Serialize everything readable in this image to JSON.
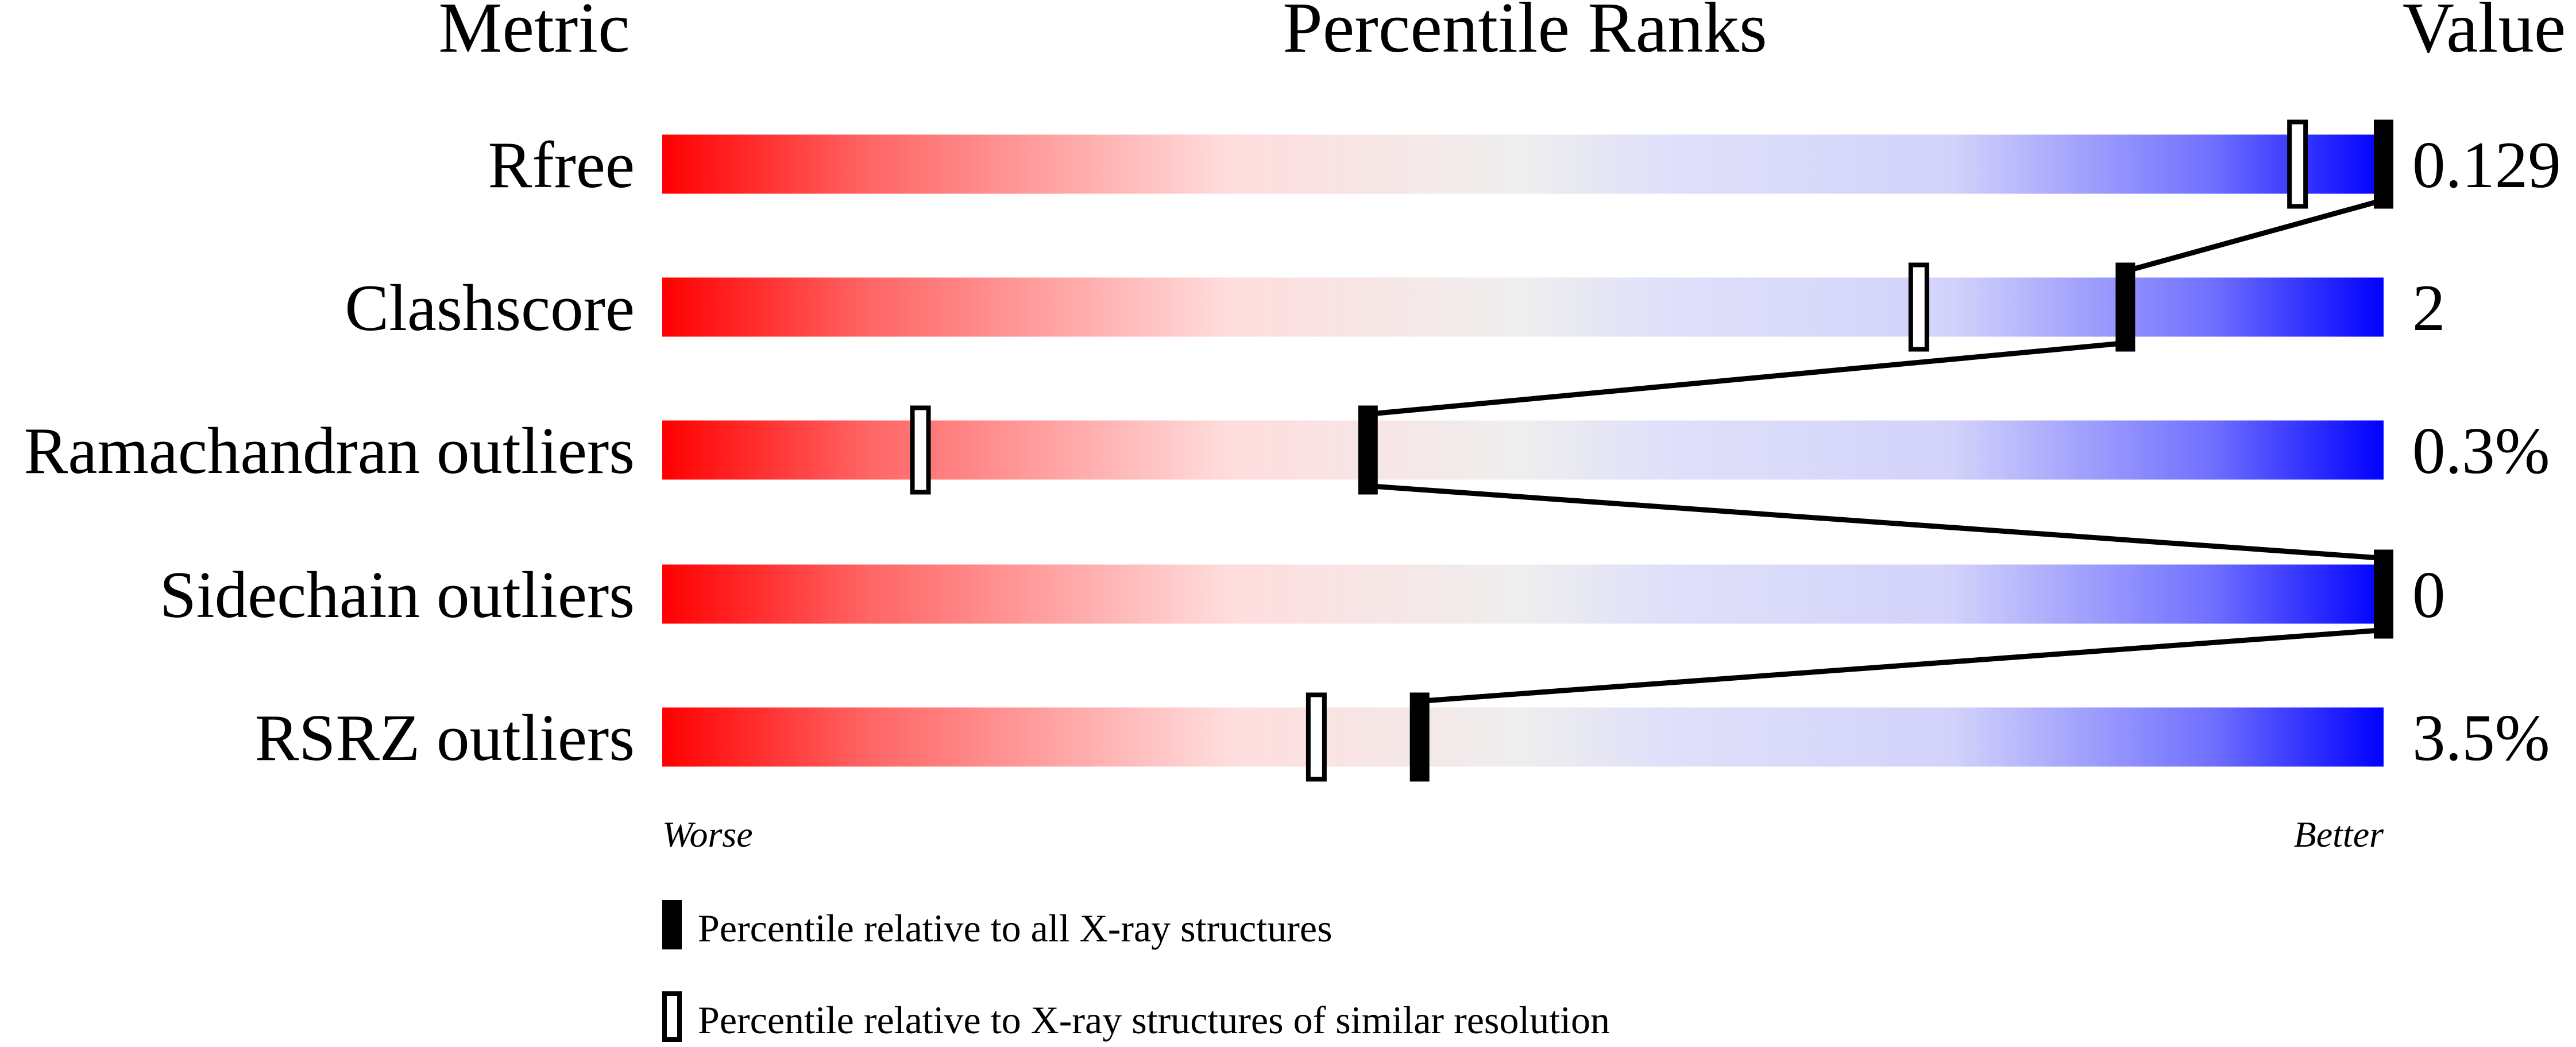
{
  "chart_data": {
    "type": "table",
    "headers": {
      "metric": "Metric",
      "ranks": "Percentile Ranks",
      "value": "Value"
    },
    "xlim": [
      0,
      100
    ],
    "rows": [
      {
        "metric": "Rfree",
        "value": "0.129",
        "percentile_all": 100,
        "percentile_similar": 95
      },
      {
        "metric": "Clashscore",
        "value": "2",
        "percentile_all": 85,
        "percentile_similar": 73
      },
      {
        "metric": "Ramachandran outliers",
        "value": "0.3%",
        "percentile_all": 41,
        "percentile_similar": 15
      },
      {
        "metric": "Sidechain outliers",
        "value": "0",
        "percentile_all": 100,
        "percentile_similar": null
      },
      {
        "metric": "RSRZ outliers",
        "value": "3.5%",
        "percentile_all": 44,
        "percentile_similar": 38
      }
    ],
    "scale_labels": {
      "worse": "Worse",
      "better": "Better"
    },
    "legend": {
      "filled": "Percentile relative to all X-ray structures",
      "open": "Percentile relative to X-ray structures of similar resolution"
    },
    "colors": {
      "worse": "#ff0000",
      "middle": "#eeeeee",
      "better": "#0000ff",
      "marker": "#000000"
    }
  }
}
